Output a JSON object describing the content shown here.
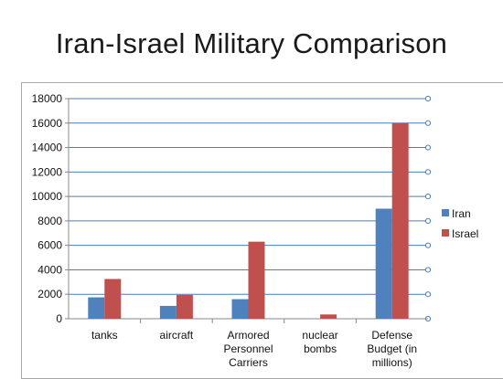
{
  "slide": {
    "title": "Iran-Israel Military Comparison"
  },
  "chart_data": {
    "type": "bar",
    "title": "",
    "xlabel": "",
    "ylabel": "",
    "categories": [
      [
        "tanks"
      ],
      [
        "aircraft"
      ],
      [
        "Armored",
        "Personnel",
        "Carriers"
      ],
      [
        "nuclear",
        "bombs"
      ],
      [
        "Defense",
        "Budget (in",
        "millions)"
      ]
    ],
    "series": [
      {
        "name": "Iran",
        "color": "#4f81bd",
        "values": [
          1750,
          1050,
          1600,
          0,
          9000
        ]
      },
      {
        "name": "Israel",
        "color": "#c0504d",
        "values": [
          3250,
          1950,
          6300,
          350,
          16000
        ]
      }
    ],
    "ylim": [
      0,
      18000
    ],
    "yticks": [
      "0",
      "2000",
      "4000",
      "6000",
      "8000",
      "10000",
      "12000",
      "14000",
      "16000",
      "18000"
    ],
    "grid": true,
    "legend": "right"
  }
}
